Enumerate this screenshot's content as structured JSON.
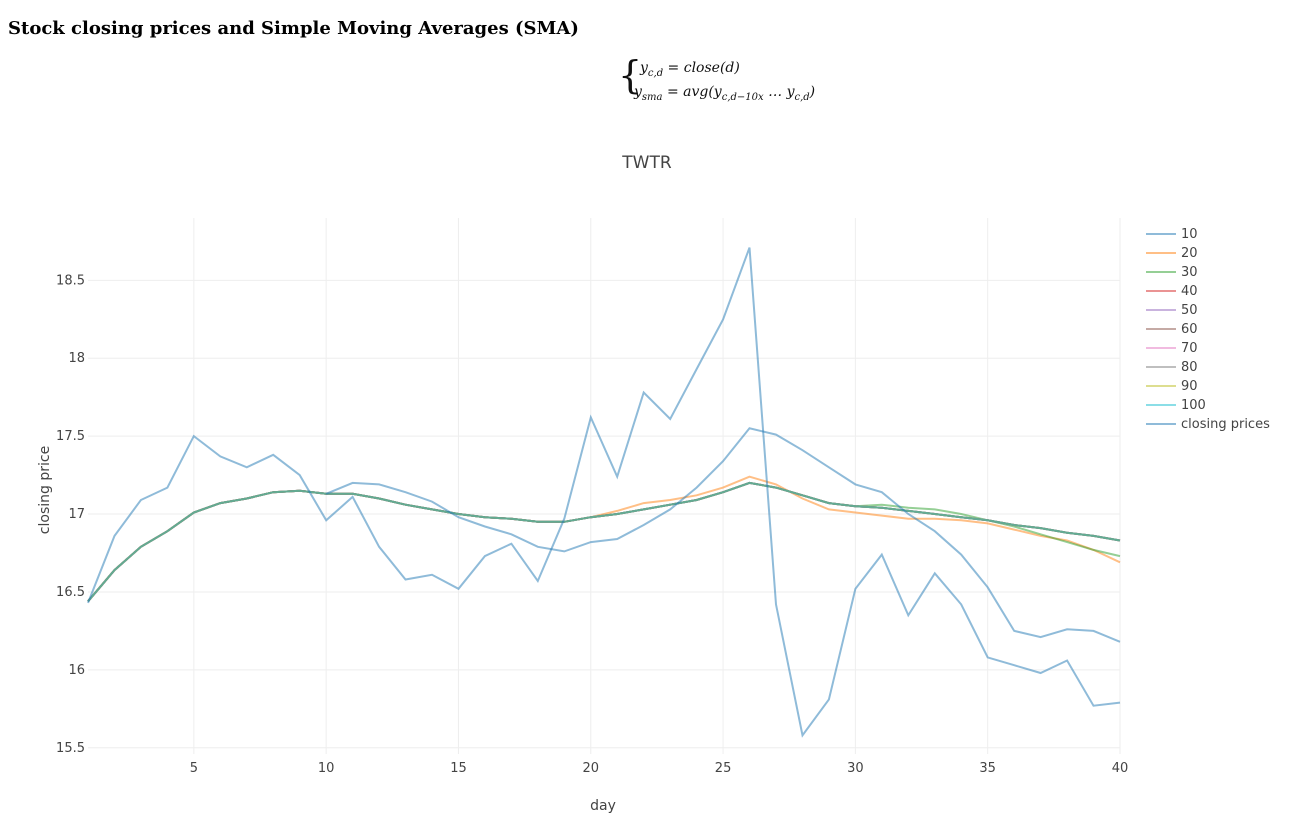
{
  "page": {
    "heading": "Stock closing prices and Simple Moving Averages (SMA)",
    "formula": {
      "line1_lhs": "y",
      "line1_lhs_sub": "c,d",
      "line1_rhs": " = close(d)",
      "line2_lhs": "y",
      "line2_lhs_sub": "sma",
      "line2_rhs_a": " = avg(y",
      "line2_rhs_sub1": "c,d−10x",
      "line2_rhs_b": " … y",
      "line2_rhs_sub2": "c,d",
      "line2_rhs_c": ")"
    }
  },
  "chart_data": {
    "type": "line",
    "title": "TWTR",
    "xlabel": "day",
    "ylabel": "closing price",
    "xlim": [
      1,
      40
    ],
    "ylim": [
      15.46,
      18.9
    ],
    "xticks": [
      5,
      10,
      15,
      20,
      25,
      30,
      35,
      40
    ],
    "yticks": [
      15.5,
      16,
      16.5,
      17,
      17.5,
      18,
      18.5
    ],
    "grid": true,
    "legend_position": "right",
    "series": [
      {
        "name": "10",
        "color": "#1f77b4",
        "opacity": 0.5,
        "values": [
          16.44,
          16.64,
          16.79,
          16.89,
          17.01,
          17.07,
          17.1,
          17.14,
          17.15,
          17.13,
          17.13,
          17.1,
          17.06,
          17.03,
          17.0,
          16.98,
          16.97,
          16.95,
          16.95,
          16.98,
          17.0,
          17.03,
          17.06,
          17.09,
          17.14,
          17.2,
          17.17,
          17.12,
          17.07,
          17.05,
          17.04,
          17.02,
          17.0,
          16.98,
          16.96,
          16.93,
          16.91,
          16.88,
          16.86,
          16.83
        ]
      },
      {
        "name": "20",
        "color": "#ff7f0e",
        "opacity": 0.5,
        "values": [
          16.44,
          16.64,
          16.79,
          16.89,
          17.01,
          17.07,
          17.1,
          17.14,
          17.15,
          17.13,
          17.13,
          17.1,
          17.06,
          17.03,
          17.0,
          16.98,
          16.97,
          16.95,
          16.95,
          16.98,
          17.02,
          17.07,
          17.09,
          17.12,
          17.17,
          17.24,
          17.19,
          17.1,
          17.03,
          17.01,
          16.99,
          16.97,
          16.97,
          16.96,
          16.94,
          16.9,
          16.86,
          16.83,
          16.77,
          16.69
        ]
      },
      {
        "name": "30",
        "color": "#2ca02c",
        "opacity": 0.5,
        "values": [
          16.44,
          16.64,
          16.79,
          16.89,
          17.01,
          17.07,
          17.1,
          17.14,
          17.15,
          17.13,
          17.13,
          17.1,
          17.06,
          17.03,
          17.0,
          16.98,
          16.97,
          16.95,
          16.95,
          16.98,
          17.0,
          17.03,
          17.06,
          17.09,
          17.14,
          17.2,
          17.17,
          17.12,
          17.07,
          17.05,
          17.06,
          17.04,
          17.03,
          17.0,
          16.96,
          16.92,
          16.87,
          16.82,
          16.77,
          16.73
        ]
      },
      {
        "name": "40",
        "color": "#d62728",
        "opacity": 0.5,
        "values": [
          16.44,
          16.64,
          16.79,
          16.89,
          17.01,
          17.07,
          17.1,
          17.14,
          17.15,
          17.13,
          17.13,
          17.1,
          17.06,
          17.03,
          17.0,
          16.98,
          16.97,
          16.95,
          16.95,
          16.98,
          17.0,
          17.03,
          17.06,
          17.09,
          17.14,
          17.2,
          17.17,
          17.12,
          17.07,
          17.05,
          17.04,
          17.02,
          17.0,
          16.98,
          16.96,
          16.93,
          16.91,
          16.88,
          16.86,
          16.83
        ]
      },
      {
        "name": "50",
        "color": "#9467bd",
        "opacity": 0.5,
        "values": [
          16.44,
          16.64,
          16.79,
          16.89,
          17.01,
          17.07,
          17.1,
          17.14,
          17.15,
          17.13,
          17.13,
          17.1,
          17.06,
          17.03,
          17.0,
          16.98,
          16.97,
          16.95,
          16.95,
          16.98,
          17.0,
          17.03,
          17.06,
          17.09,
          17.14,
          17.2,
          17.17,
          17.12,
          17.07,
          17.05,
          17.04,
          17.02,
          17.0,
          16.98,
          16.96,
          16.93,
          16.91,
          16.88,
          16.86,
          16.83
        ]
      },
      {
        "name": "60",
        "color": "#8c564b",
        "opacity": 0.5,
        "values": [
          16.44,
          16.64,
          16.79,
          16.89,
          17.01,
          17.07,
          17.1,
          17.14,
          17.15,
          17.13,
          17.13,
          17.1,
          17.06,
          17.03,
          17.0,
          16.98,
          16.97,
          16.95,
          16.95,
          16.98,
          17.0,
          17.03,
          17.06,
          17.09,
          17.14,
          17.2,
          17.17,
          17.12,
          17.07,
          17.05,
          17.04,
          17.02,
          17.0,
          16.98,
          16.96,
          16.93,
          16.91,
          16.88,
          16.86,
          16.83
        ]
      },
      {
        "name": "70",
        "color": "#e377c2",
        "opacity": 0.5,
        "values": [
          16.44,
          16.64,
          16.79,
          16.89,
          17.01,
          17.07,
          17.1,
          17.14,
          17.15,
          17.13,
          17.13,
          17.1,
          17.06,
          17.03,
          17.0,
          16.98,
          16.97,
          16.95,
          16.95,
          16.98,
          17.0,
          17.03,
          17.06,
          17.09,
          17.14,
          17.2,
          17.17,
          17.12,
          17.07,
          17.05,
          17.04,
          17.02,
          17.0,
          16.98,
          16.96,
          16.93,
          16.91,
          16.88,
          16.86,
          16.83
        ]
      },
      {
        "name": "80",
        "color": "#7f7f7f",
        "opacity": 0.5,
        "values": [
          16.44,
          16.64,
          16.79,
          16.89,
          17.01,
          17.07,
          17.1,
          17.14,
          17.15,
          17.13,
          17.13,
          17.1,
          17.06,
          17.03,
          17.0,
          16.98,
          16.97,
          16.95,
          16.95,
          16.98,
          17.0,
          17.03,
          17.06,
          17.09,
          17.14,
          17.2,
          17.17,
          17.12,
          17.07,
          17.05,
          17.04,
          17.02,
          17.0,
          16.98,
          16.96,
          16.93,
          16.91,
          16.88,
          16.86,
          16.83
        ]
      },
      {
        "name": "90",
        "color": "#bcbd22",
        "opacity": 0.5,
        "values": [
          16.44,
          16.64,
          16.79,
          16.89,
          17.01,
          17.07,
          17.1,
          17.14,
          17.15,
          17.13,
          17.13,
          17.1,
          17.06,
          17.03,
          17.0,
          16.98,
          16.97,
          16.95,
          16.95,
          16.98,
          17.0,
          17.03,
          17.06,
          17.09,
          17.14,
          17.2,
          17.17,
          17.12,
          17.07,
          17.05,
          17.04,
          17.02,
          17.0,
          16.98,
          16.96,
          16.93,
          16.91,
          16.88,
          16.86,
          16.83
        ]
      },
      {
        "name": "100",
        "color": "#17becf",
        "opacity": 0.5,
        "values": [
          16.44,
          16.64,
          16.79,
          16.89,
          17.01,
          17.07,
          17.1,
          17.14,
          17.15,
          17.13,
          17.13,
          17.1,
          17.06,
          17.03,
          17.0,
          16.98,
          16.97,
          16.95,
          16.95,
          16.98,
          17.0,
          17.03,
          17.06,
          17.09,
          17.14,
          17.2,
          17.17,
          17.12,
          17.07,
          17.05,
          17.04,
          17.02,
          17.0,
          16.98,
          16.96,
          16.93,
          16.91,
          16.88,
          16.86,
          16.83
        ]
      },
      {
        "name": "closing prices",
        "color": "#1f77b4",
        "opacity": 0.5,
        "values": [
          16.43,
          16.86,
          17.09,
          17.17,
          17.5,
          17.37,
          17.3,
          17.38,
          17.25,
          16.96,
          17.11,
          16.79,
          16.58,
          16.61,
          16.52,
          16.73,
          16.81,
          16.57,
          16.97,
          17.62,
          17.24,
          17.78,
          17.61,
          17.93,
          18.25,
          18.71,
          16.42,
          15.58,
          15.81,
          16.52,
          16.74,
          16.35,
          16.62,
          16.42,
          16.08,
          16.03,
          15.98,
          16.06,
          15.77,
          15.79
        ]
      },
      {
        "name": "",
        "color": "#1f77b4",
        "opacity": 0.5,
        "values": [
          null,
          null,
          null,
          null,
          null,
          null,
          null,
          null,
          null,
          17.13,
          17.2,
          17.19,
          17.14,
          17.08,
          16.98,
          16.92,
          16.87,
          16.79,
          16.76,
          16.82,
          16.84,
          16.93,
          17.03,
          17.17,
          17.34,
          17.55,
          17.51,
          17.41,
          17.3,
          17.19,
          17.14,
          17.0,
          16.89,
          16.74,
          16.53,
          16.25,
          16.21,
          16.26,
          16.25,
          16.18
        ]
      }
    ]
  }
}
